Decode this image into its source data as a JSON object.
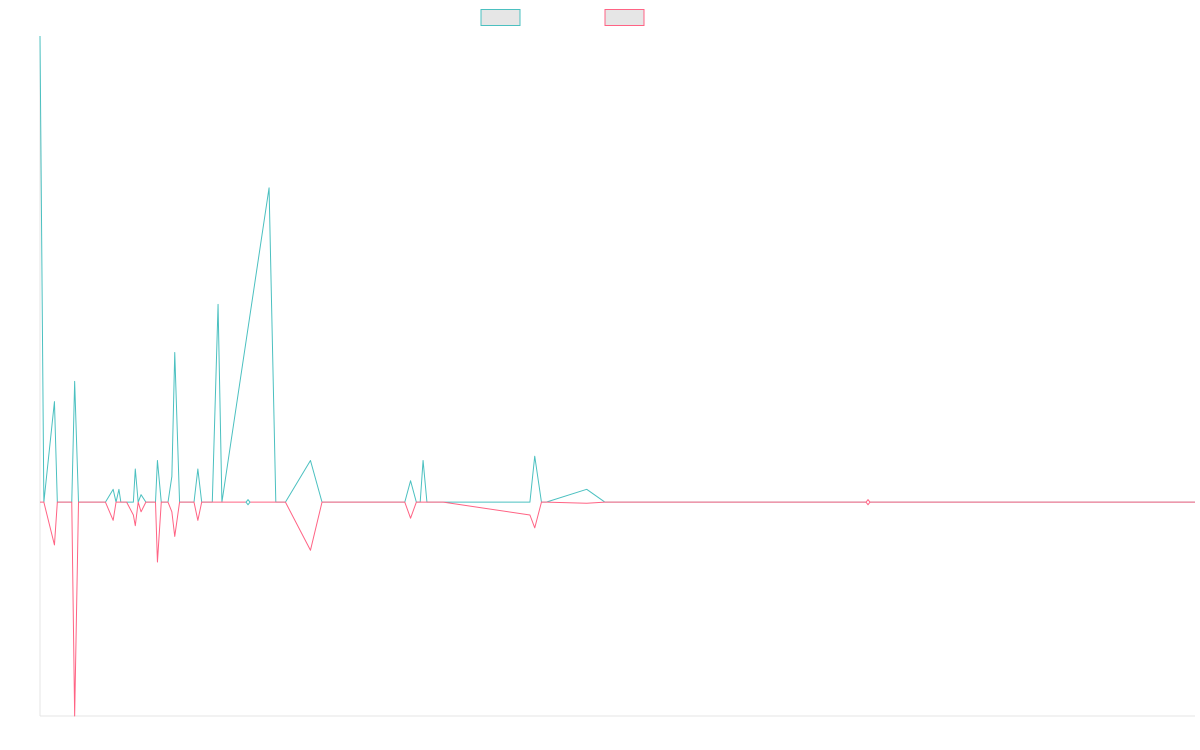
{
  "chart_data": {
    "type": "line",
    "title": "",
    "xlabel": "",
    "ylabel": "",
    "grid": false,
    "legend_position": "top-center",
    "xlim": [
      0,
      1200
    ],
    "ylim": [
      -1000,
      2180
    ],
    "x": [
      0,
      4,
      15,
      18,
      22,
      29,
      33,
      36,
      40,
      68,
      76,
      79,
      82,
      84,
      90,
      97,
      99,
      102,
      105,
      110,
      120,
      122,
      126,
      130,
      133,
      137,
      140,
      145,
      148,
      150,
      152,
      156,
      160,
      164,
      168,
      179,
      185,
      189,
      238,
      245,
      250,
      255,
      281,
      293,
      299,
      302,
      306,
      379,
      385,
      391,
      395,
      398,
      402,
      419,
      509,
      514,
      521,
      526,
      568,
      587,
      592,
      598,
      602,
      690,
      709,
      714,
      718,
      722,
      744,
      747,
      750,
      753,
      757,
      760,
      782,
      793,
      797,
      801,
      809,
      825,
      829,
      833,
      1200
    ],
    "series": [
      {
        "name": "",
        "color": "#4bc0c0",
        "values": [
          2180,
          0,
          470,
          0,
          0,
          0,
          0,
          565,
          0,
          0,
          60,
          0,
          60,
          0,
          0,
          0,
          155,
          0,
          35,
          0,
          0,
          195,
          0,
          0,
          0,
          120,
          700,
          0,
          0,
          0,
          0,
          0,
          0,
          155,
          0,
          0,
          925,
          0,
          1470,
          0,
          0,
          0,
          195,
          0,
          0,
          0,
          0,
          0,
          100,
          0,
          0,
          195,
          0,
          0,
          0,
          215,
          0,
          0,
          60,
          0,
          0,
          0,
          0,
          0,
          0,
          0,
          0,
          0,
          0,
          0,
          0,
          0,
          0,
          0,
          0,
          0,
          0,
          0,
          0,
          0,
          0,
          0,
          0
        ]
      },
      {
        "name": "",
        "color": "#ff6384",
        "values": [
          0,
          0,
          -200,
          0,
          0,
          0,
          0,
          -1000,
          0,
          0,
          -85,
          0,
          0,
          0,
          0,
          -60,
          -110,
          0,
          -45,
          0,
          0,
          -280,
          0,
          0,
          0,
          -45,
          -160,
          0,
          0,
          0,
          0,
          0,
          0,
          -85,
          0,
          0,
          0,
          0,
          0,
          0,
          0,
          0,
          -225,
          0,
          0,
          0,
          0,
          0,
          -75,
          0,
          0,
          0,
          0,
          0,
          -60,
          -120,
          0,
          0,
          -5,
          0,
          0,
          0,
          0,
          0,
          0,
          0,
          0,
          0,
          0,
          0,
          0,
          0,
          0,
          0,
          0,
          0,
          0,
          0,
          0,
          0,
          0,
          0,
          0
        ]
      }
    ]
  }
}
